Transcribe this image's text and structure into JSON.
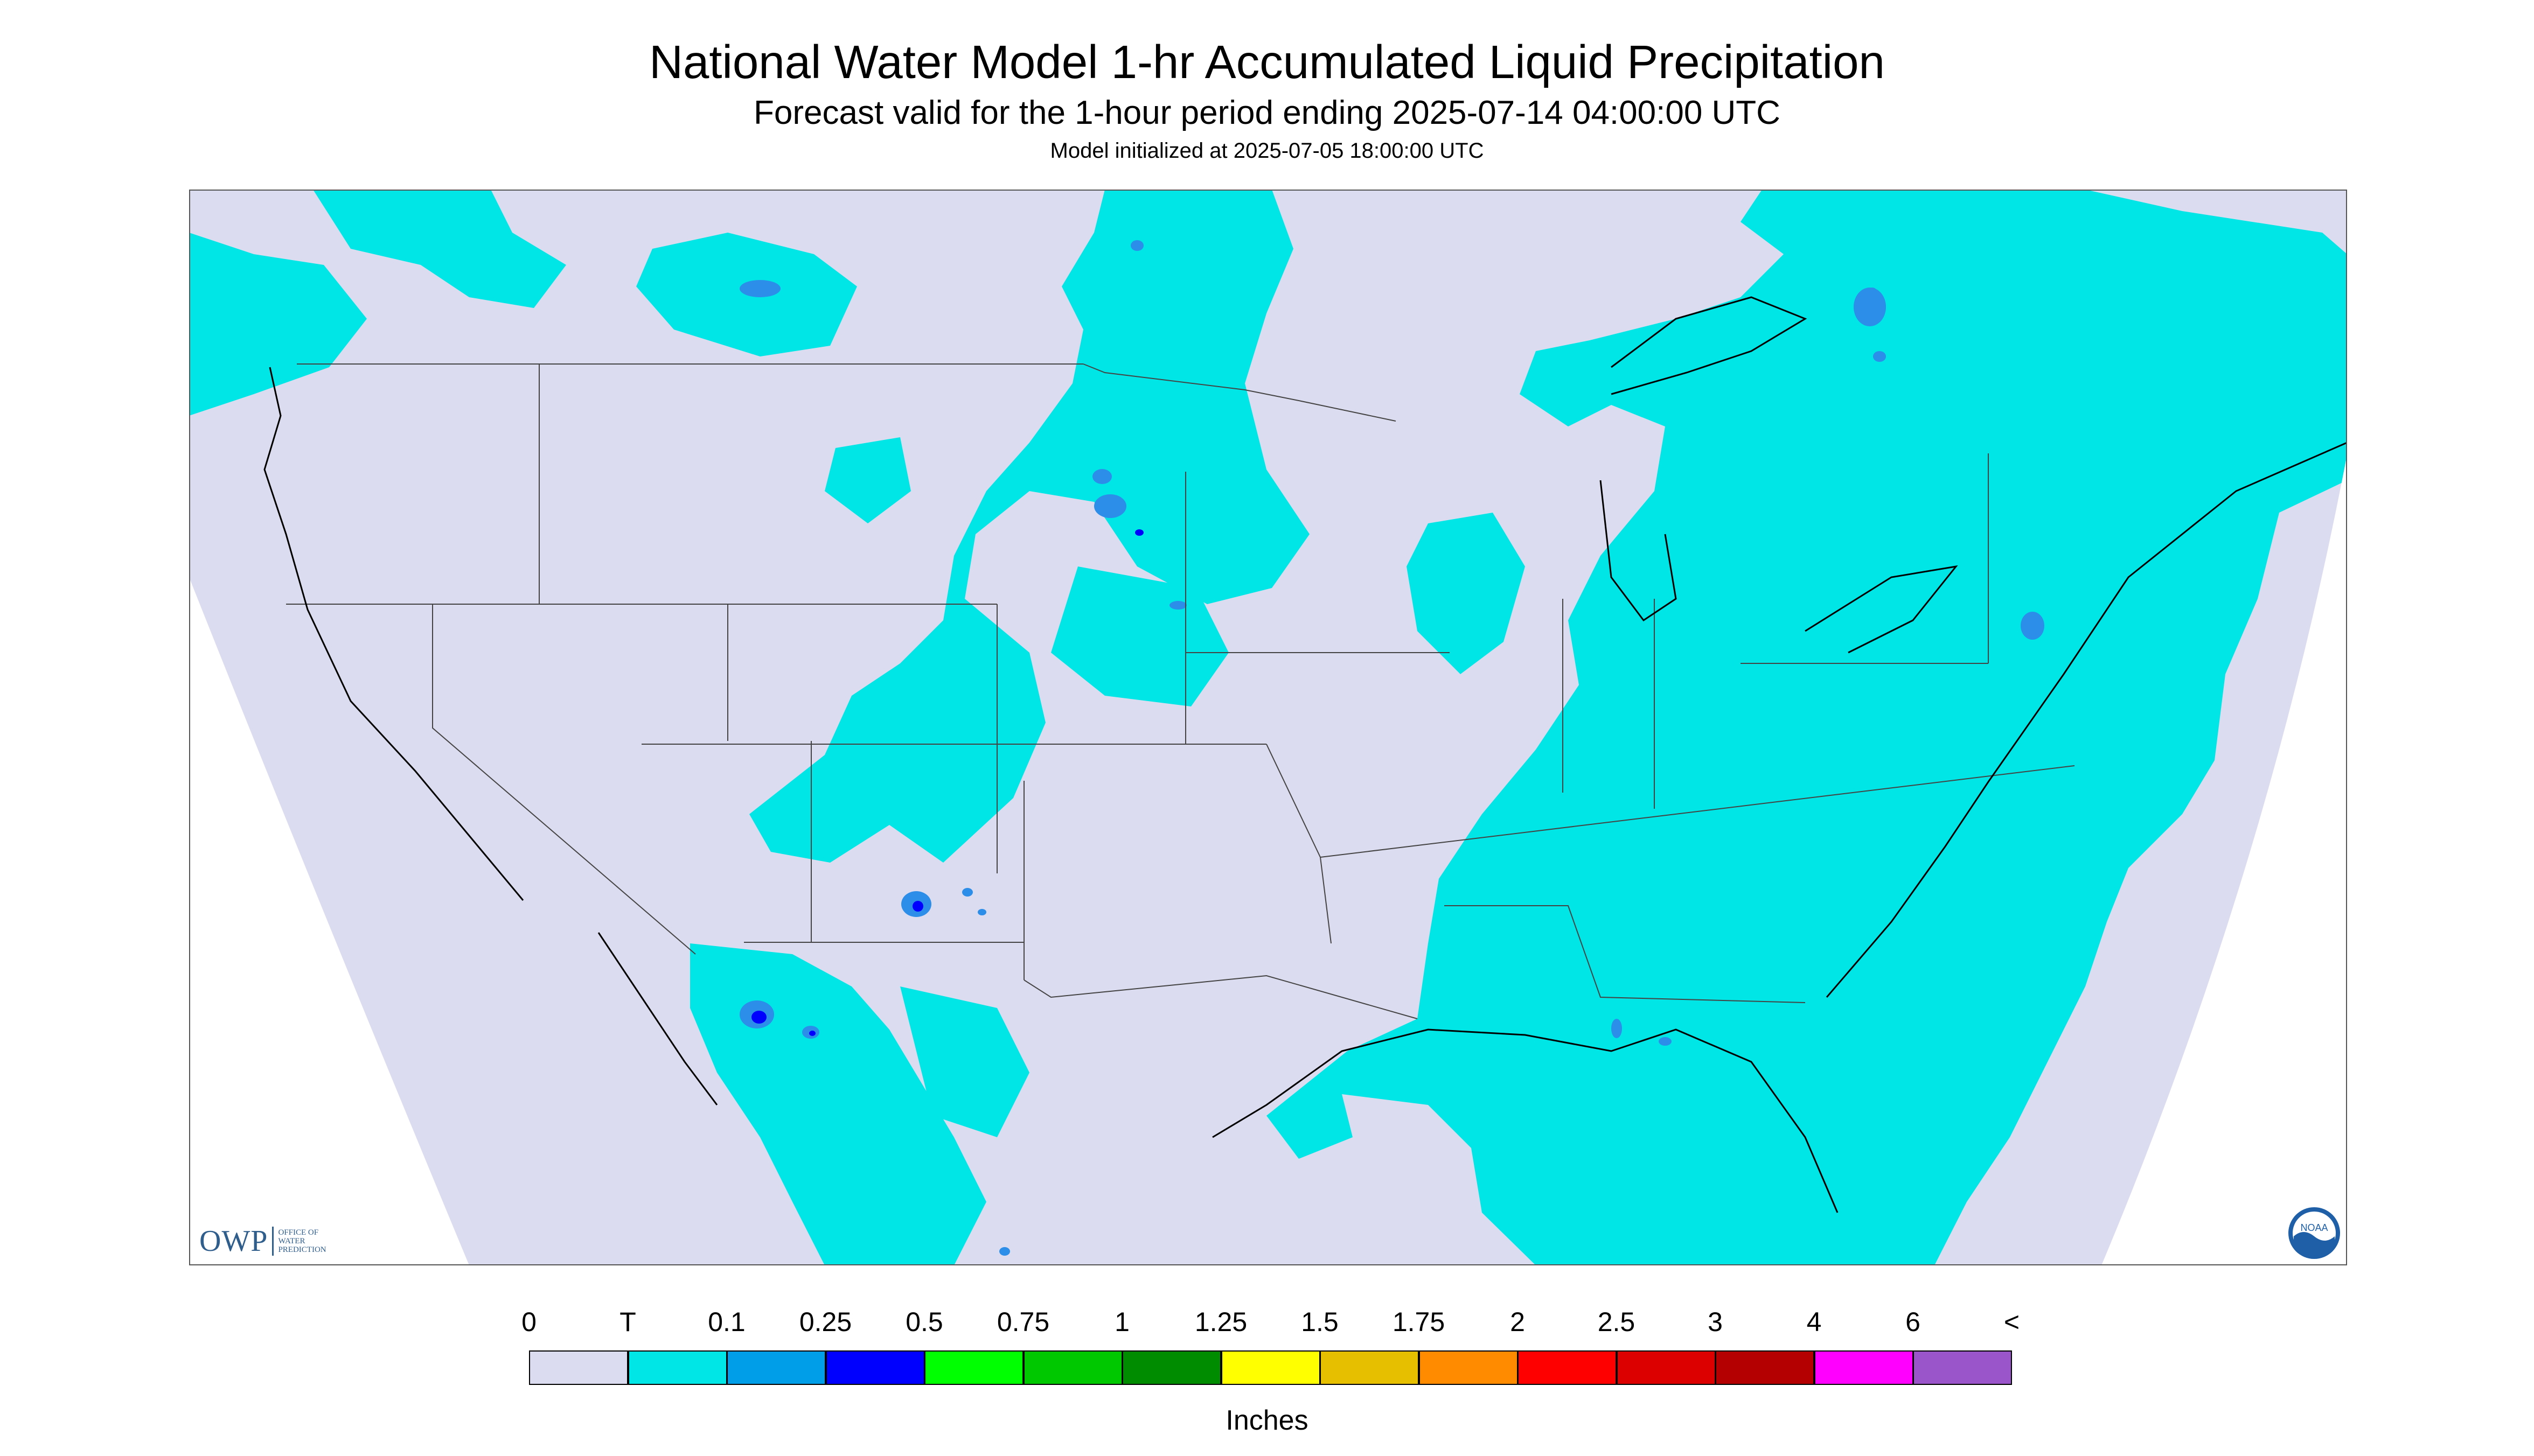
{
  "title": "National Water Model 1-hr Accumulated Liquid Precipitation",
  "subtitle": "Forecast valid for the 1-hour period ending 2025-07-14 04:00:00 UTC",
  "init_text": "Model initialized at 2025-07-05 18:00:00 UTC",
  "logos": {
    "owp_big": "OWP",
    "owp_small_1": "OFFICE OF",
    "owp_small_2": "WATER",
    "owp_small_3": "PREDICTION",
    "noaa_text": "NOAA"
  },
  "legend": {
    "units": "Inches",
    "labels": [
      "0",
      "T",
      "0.1",
      "0.25",
      "0.5",
      "0.75",
      "1",
      "1.25",
      "1.5",
      "1.75",
      "2",
      "2.5",
      "3",
      "4",
      "6",
      "<"
    ],
    "colors": [
      "#dcdcf0",
      "#00e5e5",
      "#009ee8",
      "#0000ff",
      "#00ff00",
      "#00c800",
      "#008c00",
      "#ffff00",
      "#e6bf00",
      "#ff8c00",
      "#ff0000",
      "#dc0000",
      "#b40000",
      "#ff00ff",
      "#9955c9"
    ]
  },
  "colors": {
    "no_data": "#ffffff",
    "background_zero": "#dcdcf0",
    "trace": "#00e5e5",
    "light": "#2c8ee8",
    "moderate": "#0000ff",
    "border": "#444444"
  }
}
